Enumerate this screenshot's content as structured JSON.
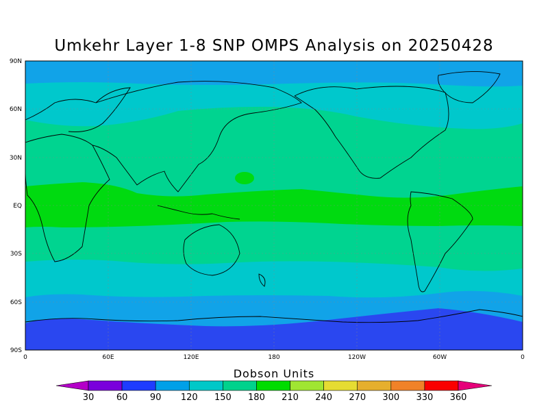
{
  "title": "Umkehr Layer 1-8 SNP OMPS Analysis on 20250428",
  "colorbar": {
    "title": "Dobson Units",
    "labels": [
      "30",
      "60",
      "90",
      "120",
      "150",
      "180",
      "210",
      "240",
      "270",
      "300",
      "330",
      "360"
    ],
    "colors": [
      "#b400c8",
      "#7a00dc",
      "#1e3cff",
      "#00a0e8",
      "#00c8c8",
      "#00d28c",
      "#00dc00",
      "#a0e632",
      "#e6dc32",
      "#e6af2d",
      "#f08228",
      "#fa0000",
      "#e6007a"
    ]
  },
  "axes": {
    "lat_labels": [
      "90N",
      "60N",
      "30N",
      "EQ",
      "30S",
      "60S",
      "90S"
    ],
    "lon_labels": [
      "0",
      "60E",
      "120E",
      "180",
      "120W",
      "60W",
      "0"
    ]
  },
  "map": {
    "band_colors": {
      "polar_south": "#2a47f0",
      "high_lat": "#11a3e8",
      "mid_lat": "#00c8cc",
      "subtropic": "#00d490",
      "tropic": "#00da10"
    }
  }
}
